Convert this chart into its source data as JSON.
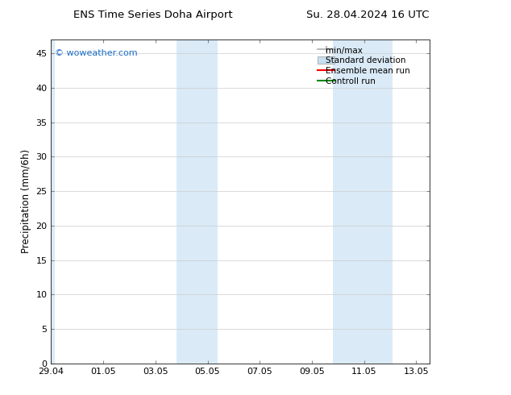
{
  "title_left": "ENS Time Series Doha Airport",
  "title_right": "Su. 28.04.2024 16 UTC",
  "ylabel": "Precipitation (mm/6h)",
  "watermark": "© woweather.com",
  "watermark_color": "#1a6ec7",
  "xlim_start": 0,
  "xlim_end": 14.5,
  "ylim": [
    0,
    47
  ],
  "yticks": [
    0,
    5,
    10,
    15,
    20,
    25,
    30,
    35,
    40,
    45
  ],
  "xtick_labels": [
    "29.04",
    "01.05",
    "03.05",
    "05.05",
    "07.05",
    "09.05",
    "11.05",
    "13.05"
  ],
  "xtick_positions": [
    0,
    2,
    4,
    6,
    8,
    10,
    12,
    14
  ],
  "shaded_regions": [
    {
      "xmin": 4.8,
      "xmax": 6.4,
      "color": "#daeaf7"
    },
    {
      "xmin": 10.8,
      "xmax": 13.1,
      "color": "#daeaf7"
    }
  ],
  "left_border_shade": {
    "xmin": -0.05,
    "xmax": 0.15,
    "color": "#daeaf7"
  },
  "bg_color": "#ffffff",
  "plot_bg_color": "#ffffff",
  "grid_color": "#cccccc",
  "title_fontsize": 9.5,
  "label_fontsize": 8.5,
  "tick_fontsize": 8,
  "legend_fontsize": 7.5,
  "minmax_color": "#aaaaaa",
  "std_facecolor": "#c8dff0",
  "std_edgecolor": "#999999",
  "ens_color": "#ff0000",
  "ctrl_color": "#008800"
}
